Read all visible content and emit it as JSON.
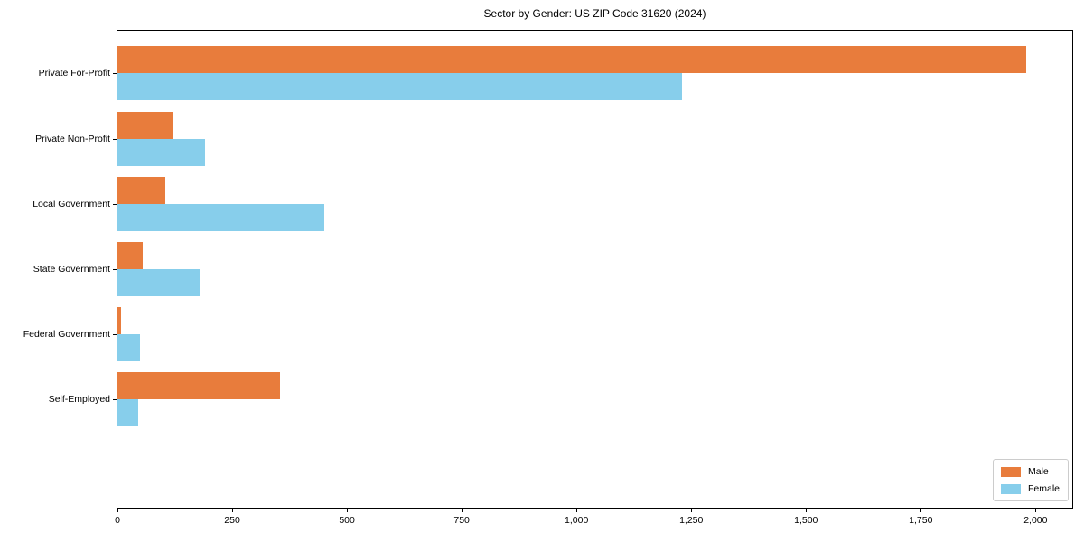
{
  "title": "Sector by Gender: US ZIP Code 31620 (2024)",
  "chart_data": {
    "type": "bar",
    "orientation": "horizontal",
    "title": "Sector by Gender: US ZIP Code 31620 (2024)",
    "xlabel": "",
    "ylabel": "",
    "categories": [
      "Private For-Profit",
      "Private Non-Profit",
      "Local Government",
      "State Government",
      "Federal Government",
      "Self-Employed"
    ],
    "series": [
      {
        "name": "Male",
        "color": "#e87c3c",
        "values": [
          1980,
          120,
          105,
          55,
          8,
          355
        ]
      },
      {
        "name": "Female",
        "color": "#87ceeb",
        "values": [
          1230,
          190,
          450,
          180,
          50,
          45
        ]
      }
    ],
    "xlim": [
      0,
      2080
    ],
    "x_ticks": [
      0,
      250,
      500,
      750,
      1000,
      1250,
      1500,
      1750,
      2000
    ],
    "x_tick_labels": [
      "0",
      "250",
      "500",
      "750",
      "1,000",
      "1,250",
      "1,500",
      "1,750",
      "2,000"
    ],
    "grid": false,
    "legend_position": "lower right",
    "colors": {
      "male": "#e87c3c",
      "female": "#87ceeb",
      "spine": "#000000",
      "legend_border": "#cccccc",
      "background": "#ffffff"
    }
  }
}
